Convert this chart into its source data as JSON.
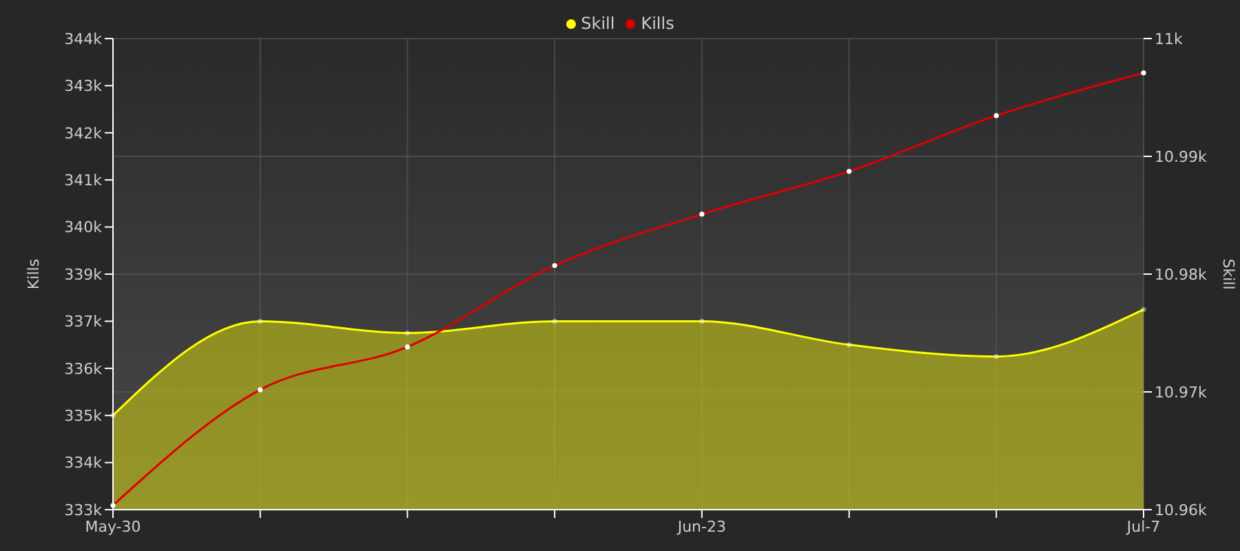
{
  "chart_data": {
    "type": "line",
    "categories": [
      "May-30",
      null,
      null,
      null,
      "Jun-23",
      null,
      null,
      "Jul-7"
    ],
    "ylabel": "Kills",
    "y2label": "Skill",
    "ylim": [
      333000,
      344000
    ],
    "yticks": [
      {
        "value": 333000,
        "label": "333k"
      },
      {
        "value": 334100,
        "label": "334k"
      },
      {
        "value": 335200,
        "label": "335k"
      },
      {
        "value": 336300,
        "label": "336k"
      },
      {
        "value": 337400,
        "label": "337k"
      },
      {
        "value": 338500,
        "label": "339k"
      },
      {
        "value": 339600,
        "label": "340k"
      },
      {
        "value": 340700,
        "label": "341k"
      },
      {
        "value": 341800,
        "label": "342k"
      },
      {
        "value": 342900,
        "label": "343k"
      },
      {
        "value": 344000,
        "label": "344k"
      }
    ],
    "y2lim": [
      10960,
      11000
    ],
    "y2ticks": [
      {
        "value": 10960,
        "label": "10.96k"
      },
      {
        "value": 10970,
        "label": "10.97k"
      },
      {
        "value": 10980,
        "label": "10.98k"
      },
      {
        "value": 10990,
        "label": "10.99k"
      },
      {
        "value": 11000,
        "label": "11k"
      }
    ],
    "series": [
      {
        "name": "Skill",
        "type": "area",
        "axis": "y2",
        "color": "#ffff00",
        "values": [
          10968,
          10976,
          10975,
          10976,
          10976,
          10974,
          10973,
          10977
        ]
      },
      {
        "name": "Kills",
        "color": "#dd0000",
        "values": [
          333100,
          335800,
          336800,
          338700,
          339900,
          340900,
          342200,
          343200
        ]
      }
    ],
    "grid": true,
    "legend": "top",
    "marker": "circle",
    "line_style": "solid"
  }
}
